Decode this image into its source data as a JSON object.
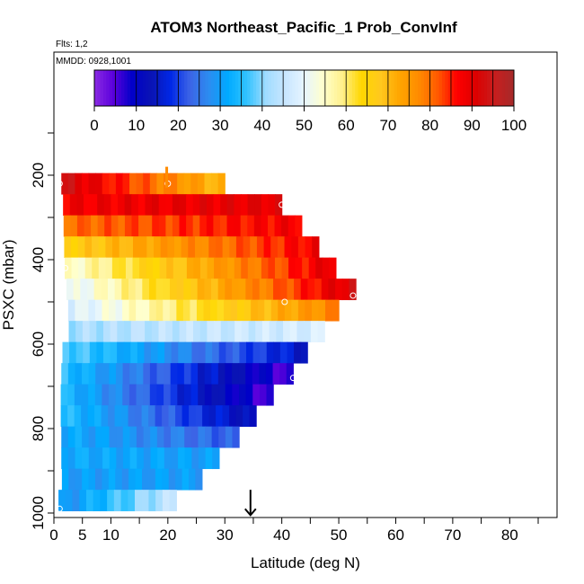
{
  "chart_data": {
    "type": "heatmap",
    "title": "ATOM3 Northeast_Pacific_1 Prob_ConvInf",
    "subtitle": "Flts: 1,2",
    "annotation": "MMDD: 0928,1001",
    "xlabel": "Latitude (deg N)",
    "ylabel": "PSXC (mbar)",
    "xlim": [
      0,
      85
    ],
    "ylim": [
      1000,
      100
    ],
    "x_ticks": [
      0,
      5,
      10,
      20,
      30,
      40,
      50,
      60,
      70,
      80
    ],
    "y_ticks": [
      200,
      400,
      600,
      800,
      1000
    ],
    "colorbar": {
      "min": 0,
      "max": 100,
      "ticks": [
        0,
        10,
        20,
        30,
        40,
        50,
        60,
        70,
        80,
        90,
        100
      ],
      "colors": [
        "#8a2be2",
        "#5a00dc",
        "#0000c8",
        "#0a14b4",
        "#0028e6",
        "#3c64e6",
        "#2c8cf0",
        "#00aaff",
        "#32c3ff",
        "#a0dcff",
        "#c8e6ff",
        "#e6f5ff",
        "#ffffcc",
        "#fff08c",
        "#ffd700",
        "#ffc81e",
        "#ffa500",
        "#ff8c00",
        "#ff5a00",
        "#ff0000",
        "#dc0000",
        "#c81e1e",
        "#a52a2a"
      ]
    },
    "rows": [
      {
        "p": 220,
        "x0": 1.3,
        "x1": 30.0,
        "start": 93,
        "end": 70
      },
      {
        "p": 270,
        "x0": 1.6,
        "x1": 40.0,
        "start": 88,
        "end": 90
      },
      {
        "p": 320,
        "x0": 1.7,
        "x1": 43.5,
        "start": 80,
        "end": 88
      },
      {
        "p": 370,
        "x0": 1.8,
        "x1": 46.5,
        "start": 66,
        "end": 88
      },
      {
        "p": 420,
        "x0": 1.9,
        "x1": 49.5,
        "start": 54,
        "end": 90
      },
      {
        "p": 470,
        "x0": 2.2,
        "x1": 53.0,
        "start": 50,
        "end": 92
      },
      {
        "p": 520,
        "x0": 2.5,
        "x1": 50.0,
        "start": 48,
        "end": 78
      },
      {
        "p": 570,
        "x0": 2.6,
        "x1": 47.5,
        "start": 42,
        "end": 48
      },
      {
        "p": 620,
        "x0": 1.5,
        "x1": 44.5,
        "start": 38,
        "end": 15
      },
      {
        "p": 670,
        "x0": 1.3,
        "x1": 42.0,
        "start": 35,
        "end": 5
      },
      {
        "p": 720,
        "x0": 1.2,
        "x1": 38.5,
        "start": 34,
        "end": 5
      },
      {
        "p": 770,
        "x0": 1.2,
        "x1": 35.5,
        "start": 35,
        "end": 12
      },
      {
        "p": 820,
        "x0": 1.3,
        "x1": 32.5,
        "start": 32,
        "end": 22
      },
      {
        "p": 870,
        "x0": 1.3,
        "x1": 29.0,
        "start": 32,
        "end": 30
      },
      {
        "p": 920,
        "x0": 1.4,
        "x1": 26.0,
        "start": 30,
        "end": 30
      },
      {
        "p": 970,
        "x0": 0.8,
        "x1": 21.5,
        "start": 28,
        "end": 45
      }
    ],
    "markers": [
      {
        "x": 1,
        "p": 220
      },
      {
        "x": 20,
        "p": 220
      },
      {
        "x": 40,
        "p": 270
      },
      {
        "x": 2,
        "p": 420
      },
      {
        "x": 40.5,
        "p": 500
      },
      {
        "x": 52.5,
        "p": 485
      },
      {
        "x": 42,
        "p": 680
      },
      {
        "x": 1,
        "p": 990
      },
      {
        "x": 22.5,
        "p": 990
      }
    ],
    "track_tick": {
      "x": 19.8,
      "p_from": 180,
      "p_to": 230
    },
    "arrow": {
      "x": 34.5,
      "p_from": 945,
      "p_to": 1005
    }
  }
}
